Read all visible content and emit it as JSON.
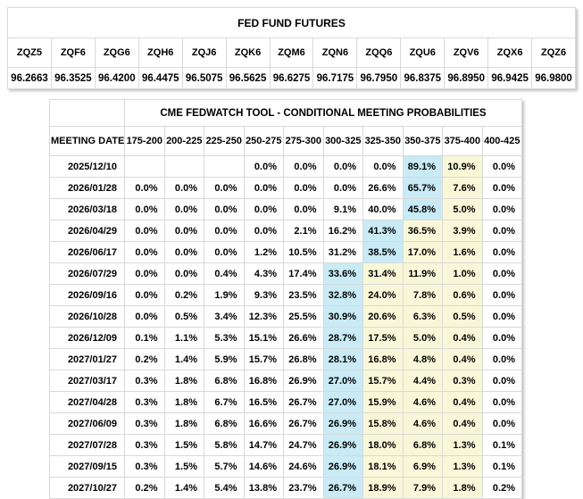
{
  "futures": {
    "title": "FED FUND FUTURES",
    "contracts": [
      "ZQZ5",
      "ZQF6",
      "ZQG6",
      "ZQH6",
      "ZQJ6",
      "ZQK6",
      "ZQM6",
      "ZQN6",
      "ZQQ6",
      "ZQU6",
      "ZQV6",
      "ZQX6",
      "ZQZ6"
    ],
    "prices": [
      "96.2663",
      "96.3525",
      "96.4200",
      "96.4475",
      "96.5075",
      "96.5625",
      "96.6275",
      "96.7175",
      "96.7950",
      "96.8375",
      "96.8950",
      "96.9425",
      "96.9800"
    ]
  },
  "fedwatch": {
    "title": "CME FEDWATCH TOOL - CONDITIONAL MEETING PROBABILITIES",
    "date_header": "MEETING DATE",
    "rate_columns": [
      "175-200",
      "200-225",
      "225-250",
      "250-275",
      "275-300",
      "300-325",
      "325-350",
      "350-375",
      "375-400",
      "400-425"
    ],
    "rows": [
      {
        "date": "2025/12/10",
        "values": [
          "",
          "",
          "",
          "0.0%",
          "0.0%",
          "0.0%",
          "0.0%",
          "89.1%",
          "10.9%",
          "0.0%"
        ],
        "hl": [
          "",
          "",
          "",
          "",
          "",
          "",
          "",
          "b",
          "y",
          ""
        ]
      },
      {
        "date": "2026/01/28",
        "values": [
          "0.0%",
          "0.0%",
          "0.0%",
          "0.0%",
          "0.0%",
          "0.0%",
          "26.6%",
          "65.7%",
          "7.6%",
          "0.0%"
        ],
        "hl": [
          "",
          "",
          "",
          "",
          "",
          "",
          "",
          "b",
          "y",
          ""
        ]
      },
      {
        "date": "2026/03/18",
        "values": [
          "0.0%",
          "0.0%",
          "0.0%",
          "0.0%",
          "0.0%",
          "9.1%",
          "40.0%",
          "45.8%",
          "5.0%",
          "0.0%"
        ],
        "hl": [
          "",
          "",
          "",
          "",
          "",
          "",
          "",
          "b",
          "y",
          ""
        ]
      },
      {
        "date": "2026/04/29",
        "values": [
          "0.0%",
          "0.0%",
          "0.0%",
          "0.0%",
          "2.1%",
          "16.2%",
          "41.3%",
          "36.5%",
          "3.9%",
          "0.0%"
        ],
        "hl": [
          "",
          "",
          "",
          "",
          "",
          "",
          "b",
          "y",
          "y",
          ""
        ]
      },
      {
        "date": "2026/06/17",
        "values": [
          "0.0%",
          "0.0%",
          "0.0%",
          "1.2%",
          "10.5%",
          "31.2%",
          "38.5%",
          "17.0%",
          "1.6%",
          "0.0%"
        ],
        "hl": [
          "",
          "",
          "",
          "",
          "",
          "",
          "b",
          "y",
          "y",
          ""
        ]
      },
      {
        "date": "2026/07/29",
        "values": [
          "0.0%",
          "0.0%",
          "0.4%",
          "4.3%",
          "17.4%",
          "33.6%",
          "31.4%",
          "11.9%",
          "1.0%",
          "0.0%"
        ],
        "hl": [
          "",
          "",
          "",
          "",
          "",
          "b",
          "y",
          "y",
          "y",
          ""
        ]
      },
      {
        "date": "2026/09/16",
        "values": [
          "0.0%",
          "0.2%",
          "1.9%",
          "9.3%",
          "23.5%",
          "32.8%",
          "24.0%",
          "7.8%",
          "0.6%",
          "0.0%"
        ],
        "hl": [
          "",
          "",
          "",
          "",
          "",
          "b",
          "y",
          "y",
          "y",
          ""
        ]
      },
      {
        "date": "2026/10/28",
        "values": [
          "0.0%",
          "0.5%",
          "3.4%",
          "12.3%",
          "25.5%",
          "30.9%",
          "20.6%",
          "6.3%",
          "0.5%",
          "0.0%"
        ],
        "hl": [
          "",
          "",
          "",
          "",
          "",
          "b",
          "y",
          "y",
          "y",
          ""
        ]
      },
      {
        "date": "2026/12/09",
        "values": [
          "0.1%",
          "1.1%",
          "5.3%",
          "15.1%",
          "26.6%",
          "28.7%",
          "17.5%",
          "5.0%",
          "0.4%",
          "0.0%"
        ],
        "hl": [
          "",
          "",
          "",
          "",
          "",
          "b",
          "y",
          "y",
          "y",
          ""
        ]
      },
      {
        "date": "2027/01/27",
        "values": [
          "0.2%",
          "1.4%",
          "5.9%",
          "15.7%",
          "26.8%",
          "28.1%",
          "16.8%",
          "4.8%",
          "0.4%",
          "0.0%"
        ],
        "hl": [
          "",
          "",
          "",
          "",
          "",
          "b",
          "y",
          "y",
          "y",
          ""
        ]
      },
      {
        "date": "2027/03/17",
        "values": [
          "0.3%",
          "1.8%",
          "6.8%",
          "16.8%",
          "26.9%",
          "27.0%",
          "15.7%",
          "4.4%",
          "0.3%",
          "0.0%"
        ],
        "hl": [
          "",
          "",
          "",
          "",
          "",
          "b",
          "y",
          "y",
          "y",
          ""
        ]
      },
      {
        "date": "2027/04/28",
        "values": [
          "0.3%",
          "1.8%",
          "6.7%",
          "16.5%",
          "26.7%",
          "27.0%",
          "15.9%",
          "4.6%",
          "0.4%",
          "0.0%"
        ],
        "hl": [
          "",
          "",
          "",
          "",
          "",
          "b",
          "y",
          "y",
          "y",
          ""
        ]
      },
      {
        "date": "2027/06/09",
        "values": [
          "0.3%",
          "1.8%",
          "6.8%",
          "16.6%",
          "26.7%",
          "26.9%",
          "15.8%",
          "4.6%",
          "0.4%",
          "0.0%"
        ],
        "hl": [
          "",
          "",
          "",
          "",
          "",
          "b",
          "y",
          "y",
          "y",
          ""
        ]
      },
      {
        "date": "2027/07/28",
        "values": [
          "0.3%",
          "1.5%",
          "5.8%",
          "14.7%",
          "24.7%",
          "26.9%",
          "18.0%",
          "6.8%",
          "1.3%",
          "0.1%"
        ],
        "hl": [
          "",
          "",
          "",
          "",
          "",
          "b",
          "y",
          "y",
          "y",
          ""
        ]
      },
      {
        "date": "2027/09/15",
        "values": [
          "0.3%",
          "1.5%",
          "5.7%",
          "14.6%",
          "24.6%",
          "26.9%",
          "18.1%",
          "6.9%",
          "1.3%",
          "0.1%"
        ],
        "hl": [
          "",
          "",
          "",
          "",
          "",
          "b",
          "y",
          "y",
          "y",
          ""
        ]
      },
      {
        "date": "2027/10/27",
        "values": [
          "0.2%",
          "1.4%",
          "5.4%",
          "13.8%",
          "23.7%",
          "26.7%",
          "18.9%",
          "7.9%",
          "1.8%",
          "0.2%"
        ],
        "hl": [
          "",
          "",
          "",
          "",
          "",
          "b",
          "y",
          "y",
          "y",
          ""
        ]
      }
    ]
  },
  "colors": {
    "max_probability_highlight": "#c8ebf6",
    "right_of_max_highlight": "#f8f8d9",
    "grid_border": "#d9d9d9"
  }
}
